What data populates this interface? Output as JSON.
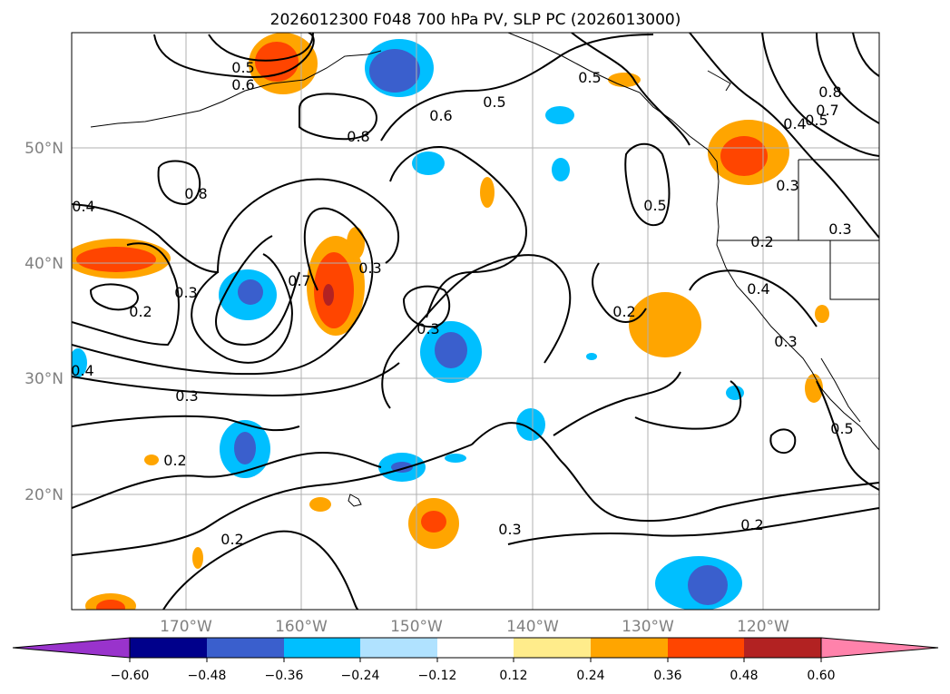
{
  "title": "2026012300 F048 700 hPa PV, SLP PC (2026013000)",
  "colors": {
    "neg_0_60_below": "#9933cc",
    "neg_0_60": "#00008b",
    "neg_0_48": "#3a5fcd",
    "neg_0_36": "#00bfff",
    "neg_0_24": "#b0e2ff",
    "neutral": "#ffffff",
    "pos_0_12": "#ffec8b",
    "pos_0_24": "#ffa500",
    "pos_0_36": "#ff4500",
    "pos_0_48": "#b22222",
    "pos_0_60_above": "#ff82ab"
  },
  "map": {
    "lon_labels": [
      "170°W",
      "160°W",
      "150°W",
      "140°W",
      "130°W",
      "120°W"
    ],
    "lat_labels": [
      "50°N",
      "40°N",
      "30°N",
      "20°N"
    ],
    "contour_labels": [
      "0.5",
      "0.6",
      "0.5",
      "0.6",
      "0.5",
      "0.8",
      "0.8",
      "0.4",
      "0.2",
      "0.3",
      "0.7",
      "0.3",
      "0.3",
      "0.2",
      "0.5",
      "0.8",
      "0.7",
      "0.5",
      "0.4",
      "0.3",
      "0.2",
      "0.3",
      "0.4",
      "0.3",
      "0.4",
      "0.3",
      "0.2",
      "0.2",
      "0.3",
      "0.2",
      "0.5"
    ]
  },
  "colorbar": {
    "tick_labels": [
      "−0.60",
      "−0.48",
      "−0.36",
      "−0.24",
      "−0.12",
      "0.12",
      "0.24",
      "0.36",
      "0.48",
      "0.60"
    ]
  }
}
